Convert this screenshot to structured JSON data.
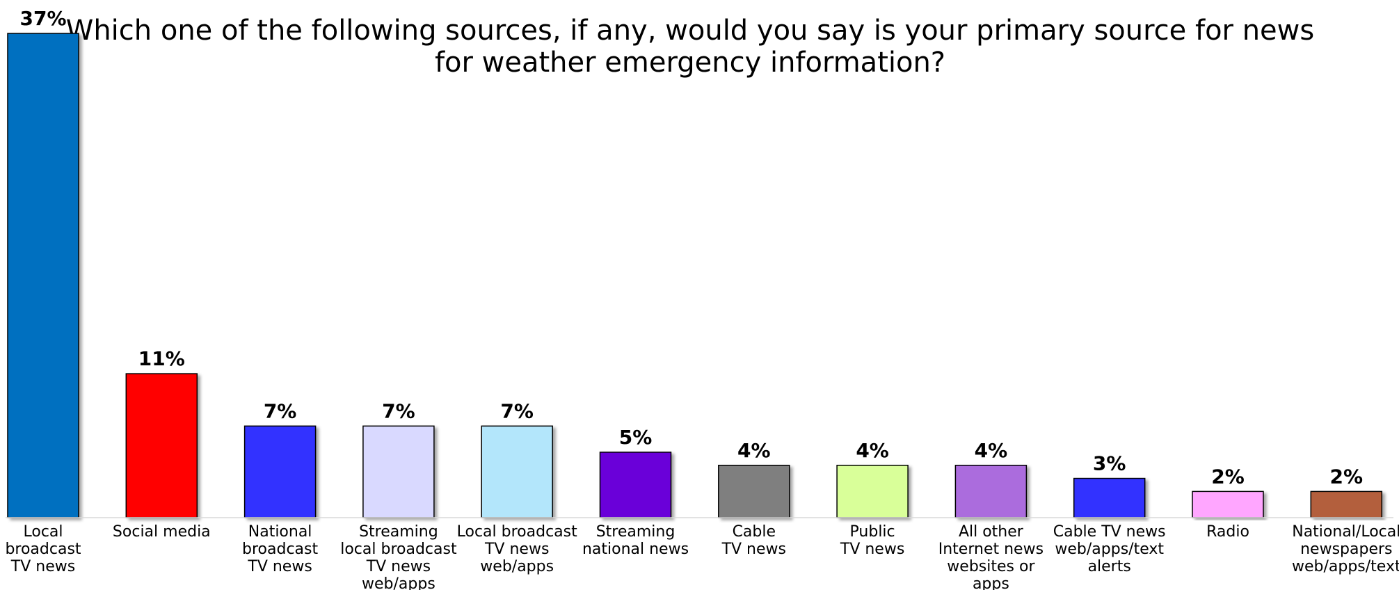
{
  "chart_data": {
    "type": "bar",
    "title_lines": [
      "Which one of the following sources, if any, would you say is your primary source for news",
      "for weather emergency information?"
    ],
    "categories": [
      [
        "Local",
        "broadcast",
        "TV news"
      ],
      [
        "Social media"
      ],
      [
        "National",
        "broadcast",
        "TV news"
      ],
      [
        "Streaming",
        "local broadcast",
        "TV news",
        "web/apps"
      ],
      [
        "Local broadcast",
        "TV news",
        "web/apps"
      ],
      [
        "Streaming",
        "national news"
      ],
      [
        "Cable",
        "TV news"
      ],
      [
        "Public",
        "TV news"
      ],
      [
        "All other",
        "Internet news",
        "websites or",
        "apps"
      ],
      [
        "Cable TV news",
        "web/apps/text",
        "alerts"
      ],
      [
        "Radio"
      ],
      [
        "National/Local",
        "newspapers",
        "web/apps/text"
      ]
    ],
    "values": [
      37,
      11,
      7,
      7,
      7,
      5,
      4,
      4,
      4,
      3,
      2,
      2
    ],
    "value_labels": [
      "37%",
      "11%",
      "7%",
      "7%",
      "7%",
      "5%",
      "4%",
      "4%",
      "4%",
      "3%",
      "2%",
      "2%"
    ],
    "colors": [
      "#0070c0",
      "#ff0000",
      "#3333ff",
      "#d9d9ff",
      "#b3e6fb",
      "#6a00d9",
      "#7f7f7f",
      "#d9ff99",
      "#ab6cdd",
      "#3333ff",
      "#ffa6ff",
      "#b35e3c"
    ],
    "ylim": [
      0,
      37
    ],
    "grid": false,
    "legend": "none"
  }
}
